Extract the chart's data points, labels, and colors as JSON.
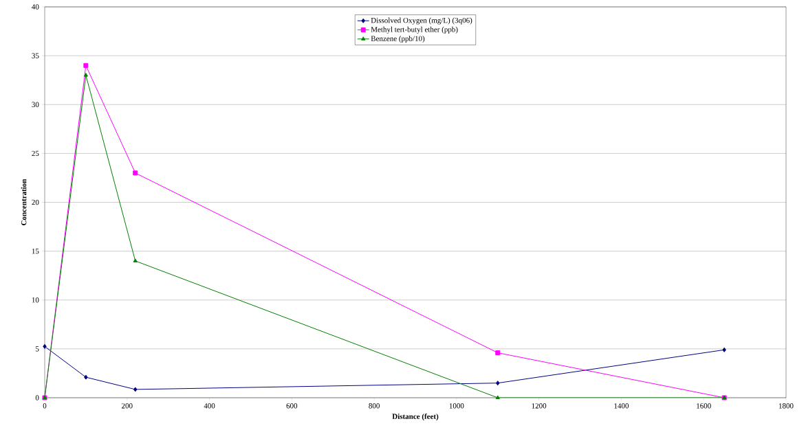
{
  "chart_data": {
    "type": "line",
    "xlabel": "Distance (feet)",
    "ylabel": "Concentration",
    "xlim": [
      0,
      1800
    ],
    "xticks": [
      0,
      200,
      400,
      600,
      800,
      1000,
      1200,
      1400,
      1600,
      1800
    ],
    "ylim": [
      0,
      40
    ],
    "yticks": [
      0,
      5,
      10,
      15,
      20,
      25,
      30,
      35,
      40
    ],
    "grid": "y",
    "legend": "top",
    "line_style": "solid",
    "x": [
      0,
      100,
      220,
      1100,
      1650
    ],
    "series": [
      {
        "name": "Dissolved Oxygen (mg/L) (3q06)",
        "color": "#000080",
        "marker": "diamond",
        "values": [
          5.25,
          2.1,
          0.85,
          1.5,
          4.9
        ]
      },
      {
        "name": "Methyl tert-butyl ether (ppb)",
        "color": "#ff00ff",
        "marker": "square",
        "values": [
          0,
          34,
          23,
          4.6,
          0
        ]
      },
      {
        "name": "Benzene (ppb/10)",
        "color": "#008000",
        "marker": "triangle",
        "values": [
          0,
          33,
          14,
          0,
          0
        ]
      }
    ]
  }
}
